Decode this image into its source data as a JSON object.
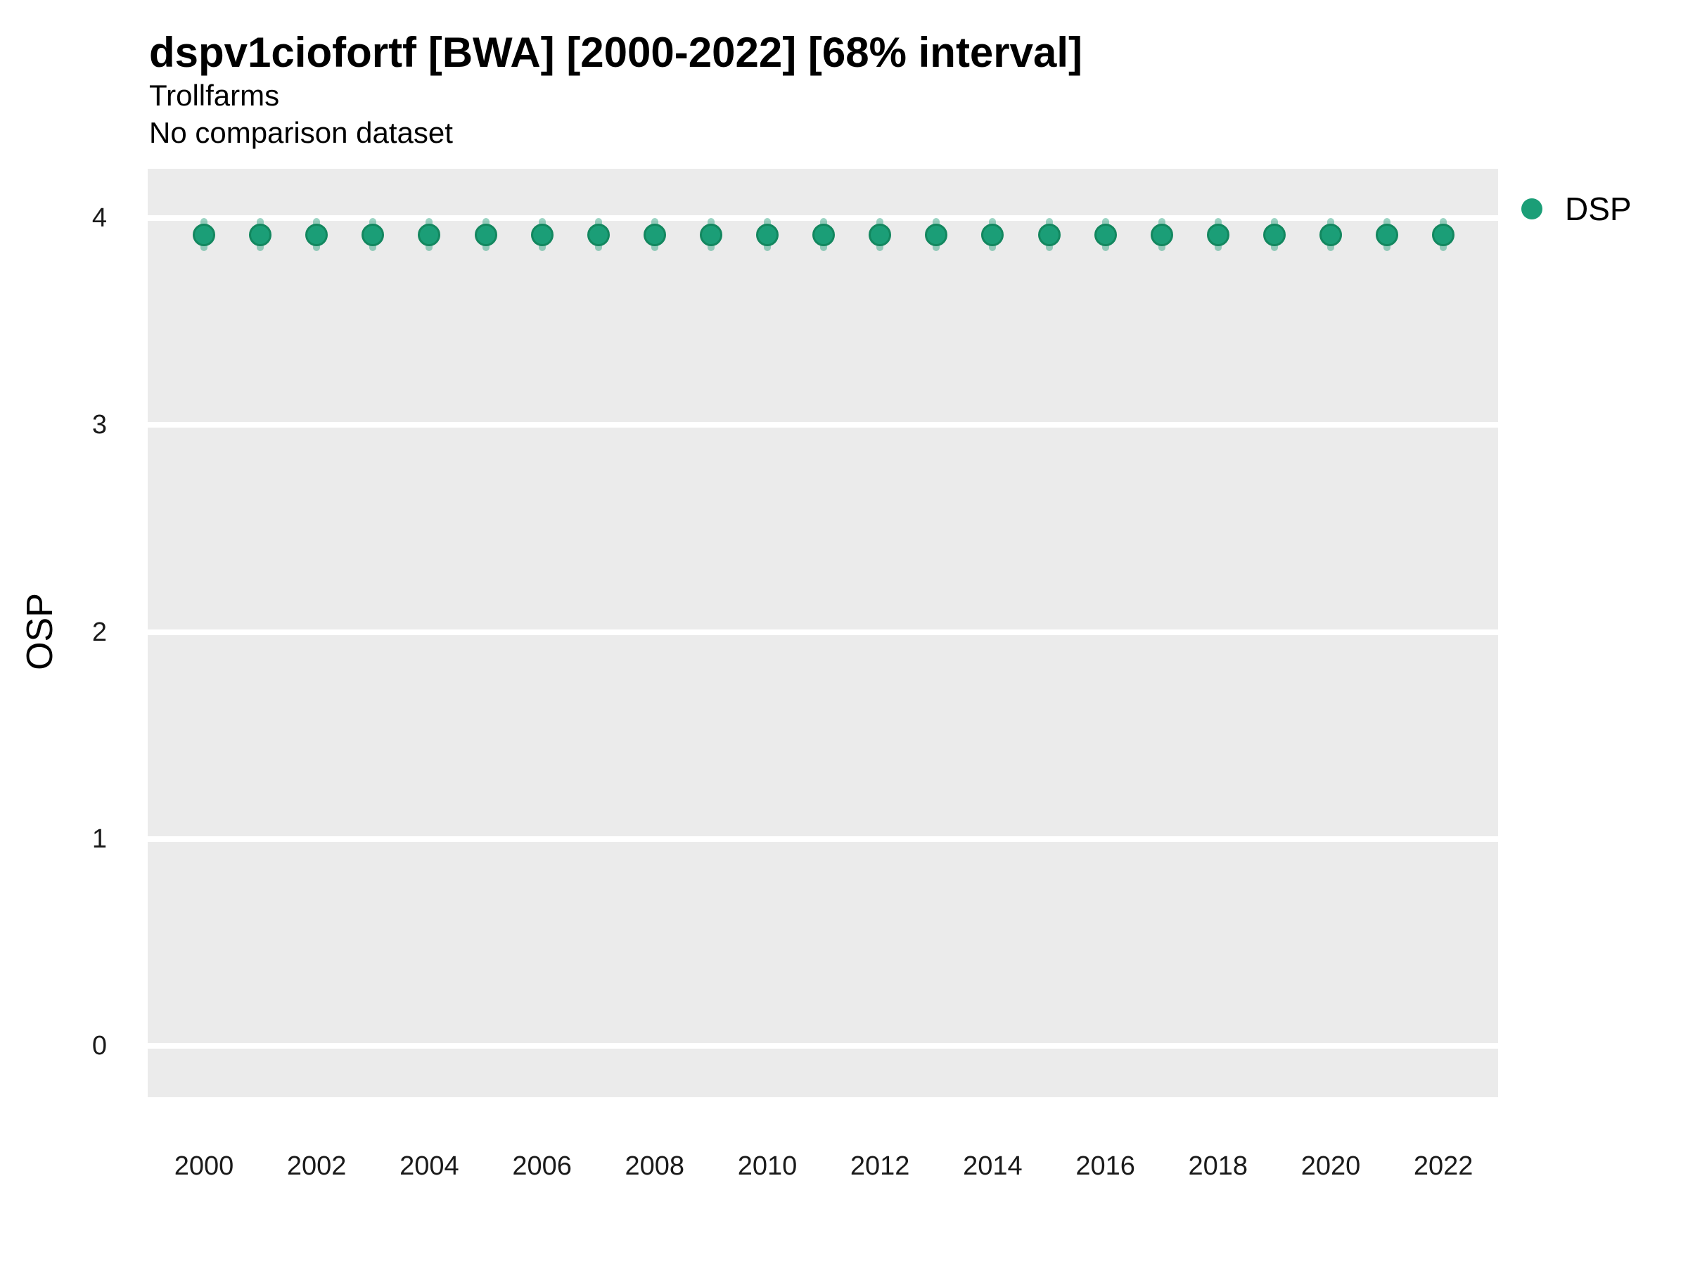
{
  "figure": {
    "title": "dspv1ciofortf [BWA] [2000-2022] [68% interval]",
    "subtitle_line1": "Trollfarms",
    "subtitle_line2": "No comparison dataset"
  },
  "chart_data": {
    "type": "scatter",
    "subtype": "pointrange",
    "interval_label": "68% interval",
    "title": "dspv1ciofortf [BWA] [2000-2022] [68% interval]",
    "subtitle": [
      "Trollfarms",
      "No comparison dataset"
    ],
    "xlabel": "",
    "ylabel": "OSP",
    "x": [
      2000,
      2001,
      2002,
      2003,
      2004,
      2005,
      2006,
      2007,
      2008,
      2009,
      2010,
      2011,
      2012,
      2013,
      2014,
      2015,
      2016,
      2017,
      2018,
      2019,
      2020,
      2021,
      2022
    ],
    "series": [
      {
        "name": "DSP",
        "color": "#1B9E77",
        "point_border_color": "#13875F",
        "band_color": "rgba(27,158,119,0.44)",
        "points": [
          {
            "year": 2000,
            "y": 3.92,
            "lo": 3.84,
            "hi": 4.0
          },
          {
            "year": 2001,
            "y": 3.92,
            "lo": 3.84,
            "hi": 4.0
          },
          {
            "year": 2002,
            "y": 3.92,
            "lo": 3.84,
            "hi": 4.0
          },
          {
            "year": 2003,
            "y": 3.92,
            "lo": 3.84,
            "hi": 4.0
          },
          {
            "year": 2004,
            "y": 3.92,
            "lo": 3.84,
            "hi": 4.0
          },
          {
            "year": 2005,
            "y": 3.92,
            "lo": 3.84,
            "hi": 4.0
          },
          {
            "year": 2006,
            "y": 3.92,
            "lo": 3.84,
            "hi": 4.0
          },
          {
            "year": 2007,
            "y": 3.92,
            "lo": 3.84,
            "hi": 4.0
          },
          {
            "year": 2008,
            "y": 3.92,
            "lo": 3.84,
            "hi": 4.0
          },
          {
            "year": 2009,
            "y": 3.92,
            "lo": 3.84,
            "hi": 4.0
          },
          {
            "year": 2010,
            "y": 3.92,
            "lo": 3.84,
            "hi": 4.0
          },
          {
            "year": 2011,
            "y": 3.92,
            "lo": 3.84,
            "hi": 4.0
          },
          {
            "year": 2012,
            "y": 3.92,
            "lo": 3.84,
            "hi": 4.0
          },
          {
            "year": 2013,
            "y": 3.92,
            "lo": 3.84,
            "hi": 4.0
          },
          {
            "year": 2014,
            "y": 3.92,
            "lo": 3.84,
            "hi": 4.0
          },
          {
            "year": 2015,
            "y": 3.92,
            "lo": 3.84,
            "hi": 4.0
          },
          {
            "year": 2016,
            "y": 3.92,
            "lo": 3.84,
            "hi": 4.0
          },
          {
            "year": 2017,
            "y": 3.92,
            "lo": 3.84,
            "hi": 4.0
          },
          {
            "year": 2018,
            "y": 3.92,
            "lo": 3.84,
            "hi": 4.0
          },
          {
            "year": 2019,
            "y": 3.92,
            "lo": 3.84,
            "hi": 4.0
          },
          {
            "year": 2020,
            "y": 3.92,
            "lo": 3.84,
            "hi": 4.0
          },
          {
            "year": 2021,
            "y": 3.92,
            "lo": 3.84,
            "hi": 4.0
          },
          {
            "year": 2022,
            "y": 3.92,
            "lo": 3.84,
            "hi": 4.0
          }
        ]
      }
    ],
    "xticks": [
      2000,
      2002,
      2004,
      2006,
      2008,
      2010,
      2012,
      2014,
      2016,
      2018,
      2020,
      2022
    ],
    "yticks": [
      0,
      1,
      2,
      3,
      4
    ],
    "ylim": [
      -0.25,
      4.24
    ],
    "grid": "major horizontal only",
    "grid_color": "#FFFFFF",
    "panel_bg": "#EBEBEB",
    "legend_position": "right-top",
    "legend_entries": [
      "DSP"
    ]
  }
}
